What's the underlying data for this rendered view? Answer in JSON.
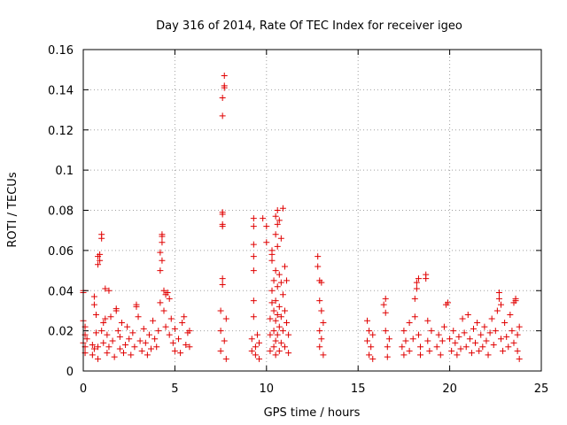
{
  "chart_data": {
    "type": "scatter",
    "title": "Day 316 of 2014, Rate Of TEC Index for receiver igeo",
    "xlabel": "GPS time / hours",
    "ylabel": "ROTI / TECUs",
    "xlim": [
      0,
      25
    ],
    "ylim": [
      0,
      0.16
    ],
    "xticks": [
      0,
      5,
      10,
      15,
      20,
      25
    ],
    "xtick_labels": [
      "0",
      "5",
      "10",
      "15",
      "20",
      "25"
    ],
    "yticks": [
      0,
      0.02,
      0.04,
      0.06,
      0.08,
      0.1,
      0.12,
      0.14,
      0.16
    ],
    "ytick_labels": [
      "0",
      "0.02",
      "0.04",
      "0.06",
      "0.08",
      "0.1",
      "0.12",
      "0.14",
      "0.16"
    ],
    "grid": true,
    "marker": "plus",
    "color": "#e00000",
    "series": [
      {
        "name": "ROTI",
        "points": [
          [
            0.0,
            0.014
          ],
          [
            0.0,
            0.025
          ],
          [
            0.0,
            0.039
          ],
          [
            0.0,
            0.04
          ],
          [
            0.1,
            0.012
          ],
          [
            0.1,
            0.018
          ],
          [
            0.1,
            0.022
          ],
          [
            0.1,
            0.009
          ],
          [
            0.2,
            0.016
          ],
          [
            0.5,
            0.008
          ],
          [
            0.5,
            0.013
          ],
          [
            0.6,
            0.011
          ],
          [
            0.6,
            0.037
          ],
          [
            0.6,
            0.033
          ],
          [
            0.7,
            0.019
          ],
          [
            0.7,
            0.028
          ],
          [
            0.8,
            0.012
          ],
          [
            0.8,
            0.006
          ],
          [
            0.8,
            0.053
          ],
          [
            0.8,
            0.057
          ],
          [
            0.9,
            0.058
          ],
          [
            0.9,
            0.055
          ],
          [
            1.0,
            0.066
          ],
          [
            1.0,
            0.068
          ],
          [
            1.0,
            0.02
          ],
          [
            1.1,
            0.024
          ],
          [
            1.1,
            0.014
          ],
          [
            1.2,
            0.041
          ],
          [
            1.2,
            0.026
          ],
          [
            1.3,
            0.018
          ],
          [
            1.3,
            0.009
          ],
          [
            1.4,
            0.04
          ],
          [
            1.4,
            0.012
          ],
          [
            1.5,
            0.027
          ],
          [
            1.6,
            0.015
          ],
          [
            1.7,
            0.007
          ],
          [
            1.8,
            0.03
          ],
          [
            1.8,
            0.031
          ],
          [
            1.9,
            0.02
          ],
          [
            2.0,
            0.011
          ],
          [
            2.0,
            0.017
          ],
          [
            2.1,
            0.024
          ],
          [
            2.2,
            0.009
          ],
          [
            2.3,
            0.013
          ],
          [
            2.4,
            0.022
          ],
          [
            2.5,
            0.016
          ],
          [
            2.6,
            0.008
          ],
          [
            2.7,
            0.019
          ],
          [
            2.8,
            0.012
          ],
          [
            2.9,
            0.032
          ],
          [
            2.9,
            0.033
          ],
          [
            3.0,
            0.027
          ],
          [
            3.1,
            0.015
          ],
          [
            3.2,
            0.01
          ],
          [
            3.3,
            0.021
          ],
          [
            3.4,
            0.014
          ],
          [
            3.5,
            0.008
          ],
          [
            3.6,
            0.018
          ],
          [
            3.7,
            0.011
          ],
          [
            3.8,
            0.025
          ],
          [
            3.9,
            0.016
          ],
          [
            4.0,
            0.012
          ],
          [
            4.1,
            0.02
          ],
          [
            4.2,
            0.034
          ],
          [
            4.2,
            0.05
          ],
          [
            4.2,
            0.059
          ],
          [
            4.3,
            0.067
          ],
          [
            4.3,
            0.068
          ],
          [
            4.3,
            0.064
          ],
          [
            4.3,
            0.055
          ],
          [
            4.4,
            0.04
          ],
          [
            4.4,
            0.03
          ],
          [
            4.5,
            0.022
          ],
          [
            4.5,
            0.038
          ],
          [
            4.6,
            0.039
          ],
          [
            4.7,
            0.018
          ],
          [
            4.7,
            0.036
          ],
          [
            4.8,
            0.026
          ],
          [
            4.9,
            0.014
          ],
          [
            5.0,
            0.01
          ],
          [
            5.0,
            0.021
          ],
          [
            5.2,
            0.016
          ],
          [
            5.3,
            0.009
          ],
          [
            5.4,
            0.024
          ],
          [
            5.5,
            0.027
          ],
          [
            5.6,
            0.013
          ],
          [
            5.7,
            0.019
          ],
          [
            5.8,
            0.02
          ],
          [
            5.8,
            0.012
          ],
          [
            7.5,
            0.01
          ],
          [
            7.5,
            0.02
          ],
          [
            7.5,
            0.03
          ],
          [
            7.6,
            0.043
          ],
          [
            7.6,
            0.046
          ],
          [
            7.6,
            0.072
          ],
          [
            7.6,
            0.073
          ],
          [
            7.6,
            0.078
          ],
          [
            7.6,
            0.079
          ],
          [
            7.6,
            0.127
          ],
          [
            7.6,
            0.136
          ],
          [
            7.7,
            0.141
          ],
          [
            7.7,
            0.142
          ],
          [
            7.7,
            0.147
          ],
          [
            7.7,
            0.015
          ],
          [
            7.8,
            0.026
          ],
          [
            7.8,
            0.006
          ],
          [
            9.2,
            0.01
          ],
          [
            9.2,
            0.016
          ],
          [
            9.3,
            0.027
          ],
          [
            9.3,
            0.035
          ],
          [
            9.3,
            0.05
          ],
          [
            9.3,
            0.057
          ],
          [
            9.3,
            0.063
          ],
          [
            9.3,
            0.072
          ],
          [
            9.3,
            0.076
          ],
          [
            9.4,
            0.012
          ],
          [
            9.4,
            0.008
          ],
          [
            9.5,
            0.018
          ],
          [
            9.6,
            0.014
          ],
          [
            9.6,
            0.006
          ],
          [
            9.8,
            0.076
          ],
          [
            10.0,
            0.072
          ],
          [
            10.0,
            0.064
          ],
          [
            10.2,
            0.01
          ],
          [
            10.2,
            0.018
          ],
          [
            10.2,
            0.026
          ],
          [
            10.3,
            0.034
          ],
          [
            10.3,
            0.04
          ],
          [
            10.3,
            0.055
          ],
          [
            10.3,
            0.058
          ],
          [
            10.3,
            0.06
          ],
          [
            10.4,
            0.045
          ],
          [
            10.4,
            0.03
          ],
          [
            10.4,
            0.02
          ],
          [
            10.4,
            0.012
          ],
          [
            10.5,
            0.077
          ],
          [
            10.5,
            0.068
          ],
          [
            10.5,
            0.05
          ],
          [
            10.5,
            0.035
          ],
          [
            10.5,
            0.025
          ],
          [
            10.5,
            0.015
          ],
          [
            10.5,
            0.008
          ],
          [
            10.6,
            0.08
          ],
          [
            10.6,
            0.073
          ],
          [
            10.6,
            0.062
          ],
          [
            10.6,
            0.042
          ],
          [
            10.6,
            0.028
          ],
          [
            10.6,
            0.018
          ],
          [
            10.7,
            0.075
          ],
          [
            10.7,
            0.048
          ],
          [
            10.7,
            0.032
          ],
          [
            10.7,
            0.022
          ],
          [
            10.7,
            0.01
          ],
          [
            10.8,
            0.066
          ],
          [
            10.8,
            0.044
          ],
          [
            10.8,
            0.027
          ],
          [
            10.8,
            0.014
          ],
          [
            10.9,
            0.081
          ],
          [
            10.9,
            0.038
          ],
          [
            10.9,
            0.02
          ],
          [
            11.0,
            0.052
          ],
          [
            11.0,
            0.03
          ],
          [
            11.0,
            0.012
          ],
          [
            11.1,
            0.045
          ],
          [
            11.1,
            0.024
          ],
          [
            11.2,
            0.018
          ],
          [
            11.2,
            0.009
          ],
          [
            12.8,
            0.052
          ],
          [
            12.8,
            0.057
          ],
          [
            12.9,
            0.045
          ],
          [
            12.9,
            0.035
          ],
          [
            12.9,
            0.02
          ],
          [
            12.9,
            0.012
          ],
          [
            13.0,
            0.044
          ],
          [
            13.0,
            0.03
          ],
          [
            13.0,
            0.016
          ],
          [
            13.1,
            0.008
          ],
          [
            13.1,
            0.024
          ],
          [
            15.5,
            0.025
          ],
          [
            15.5,
            0.015
          ],
          [
            15.6,
            0.008
          ],
          [
            15.6,
            0.02
          ],
          [
            15.7,
            0.012
          ],
          [
            15.8,
            0.018
          ],
          [
            15.8,
            0.006
          ],
          [
            16.4,
            0.033
          ],
          [
            16.5,
            0.036
          ],
          [
            16.5,
            0.029
          ],
          [
            16.5,
            0.02
          ],
          [
            16.6,
            0.012
          ],
          [
            16.6,
            0.007
          ],
          [
            16.7,
            0.016
          ],
          [
            17.4,
            0.012
          ],
          [
            17.5,
            0.02
          ],
          [
            17.5,
            0.008
          ],
          [
            17.6,
            0.015
          ],
          [
            17.8,
            0.024
          ],
          [
            17.8,
            0.01
          ],
          [
            18.0,
            0.016
          ],
          [
            18.1,
            0.027
          ],
          [
            18.1,
            0.036
          ],
          [
            18.2,
            0.041
          ],
          [
            18.2,
            0.044
          ],
          [
            18.3,
            0.046
          ],
          [
            18.3,
            0.018
          ],
          [
            18.4,
            0.012
          ],
          [
            18.4,
            0.008
          ],
          [
            18.7,
            0.046
          ],
          [
            18.7,
            0.048
          ],
          [
            18.8,
            0.025
          ],
          [
            18.8,
            0.015
          ],
          [
            18.9,
            0.01
          ],
          [
            19.0,
            0.02
          ],
          [
            19.3,
            0.012
          ],
          [
            19.4,
            0.018
          ],
          [
            19.5,
            0.008
          ],
          [
            19.6,
            0.015
          ],
          [
            19.7,
            0.022
          ],
          [
            19.8,
            0.033
          ],
          [
            19.9,
            0.034
          ],
          [
            20.0,
            0.016
          ],
          [
            20.1,
            0.01
          ],
          [
            20.2,
            0.02
          ],
          [
            20.3,
            0.014
          ],
          [
            20.4,
            0.008
          ],
          [
            20.5,
            0.017
          ],
          [
            20.6,
            0.011
          ],
          [
            20.7,
            0.026
          ],
          [
            20.8,
            0.019
          ],
          [
            20.9,
            0.012
          ],
          [
            21.0,
            0.028
          ],
          [
            21.1,
            0.016
          ],
          [
            21.2,
            0.009
          ],
          [
            21.3,
            0.021
          ],
          [
            21.4,
            0.014
          ],
          [
            21.5,
            0.024
          ],
          [
            21.6,
            0.01
          ],
          [
            21.7,
            0.018
          ],
          [
            21.8,
            0.012
          ],
          [
            21.9,
            0.022
          ],
          [
            22.0,
            0.015
          ],
          [
            22.1,
            0.008
          ],
          [
            22.2,
            0.019
          ],
          [
            22.3,
            0.026
          ],
          [
            22.4,
            0.013
          ],
          [
            22.5,
            0.02
          ],
          [
            22.6,
            0.03
          ],
          [
            22.7,
            0.036
          ],
          [
            22.7,
            0.039
          ],
          [
            22.8,
            0.033
          ],
          [
            22.8,
            0.016
          ],
          [
            22.9,
            0.01
          ],
          [
            23.0,
            0.024
          ],
          [
            23.1,
            0.017
          ],
          [
            23.2,
            0.012
          ],
          [
            23.3,
            0.028
          ],
          [
            23.4,
            0.02
          ],
          [
            23.5,
            0.014
          ],
          [
            23.5,
            0.034
          ],
          [
            23.6,
            0.035
          ],
          [
            23.6,
            0.036
          ],
          [
            23.7,
            0.018
          ],
          [
            23.7,
            0.01
          ],
          [
            23.8,
            0.006
          ],
          [
            23.8,
            0.022
          ]
        ]
      }
    ]
  }
}
